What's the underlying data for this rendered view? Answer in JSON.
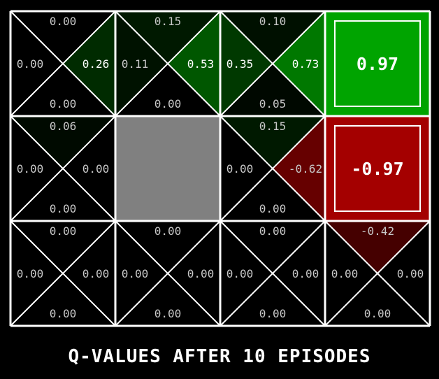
{
  "caption": "Q-VALUES AFTER 10 EPISODES",
  "grid": {
    "rows": 3,
    "cols": 4,
    "line_color": "#ffffff",
    "cells": [
      [
        {
          "type": "q",
          "north": "0.00",
          "west": "0.00",
          "east": "0.26",
          "south": "0.00"
        },
        {
          "type": "q",
          "north": "0.15",
          "west": "0.11",
          "east": "0.53",
          "south": "0.00"
        },
        {
          "type": "q",
          "north": "0.10",
          "west": "0.35",
          "east": "0.73",
          "south": "0.05"
        },
        {
          "type": "terminal",
          "value": "0.97",
          "color": "#00a400"
        }
      ],
      [
        {
          "type": "q",
          "north": "0.06",
          "west": "0.00",
          "east": "0.00",
          "south": "0.00"
        },
        {
          "type": "wall",
          "color": "#808080"
        },
        {
          "type": "q",
          "north": "0.15",
          "west": "0.00",
          "east": "-0.62",
          "south": "0.00"
        },
        {
          "type": "terminal",
          "value": "-0.97",
          "color": "#a40000"
        }
      ],
      [
        {
          "type": "q",
          "north": "0.00",
          "west": "0.00",
          "east": "0.00",
          "south": "0.00"
        },
        {
          "type": "q",
          "north": "0.00",
          "west": "0.00",
          "east": "0.00",
          "south": "0.00"
        },
        {
          "type": "q",
          "north": "0.00",
          "west": "0.00",
          "east": "0.00",
          "south": "0.00"
        },
        {
          "type": "q",
          "north": "-0.42",
          "west": "0.00",
          "east": "0.00",
          "south": "0.00"
        }
      ]
    ]
  }
}
